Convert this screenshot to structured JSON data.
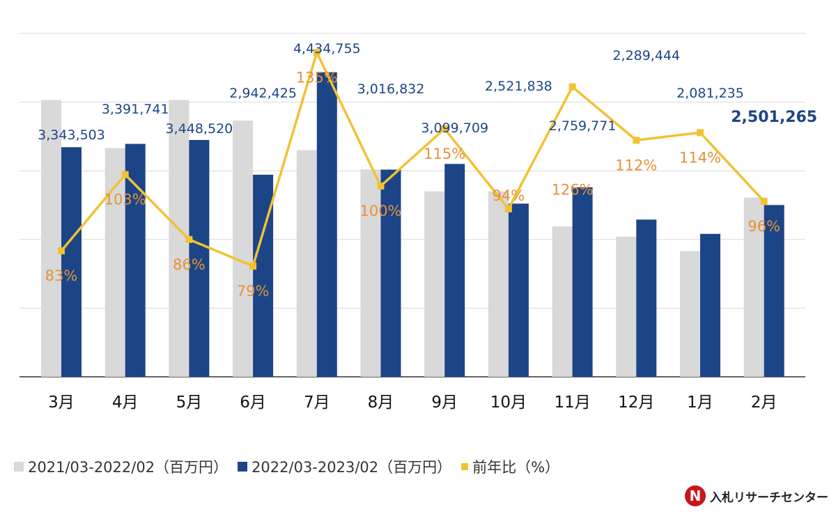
{
  "chart_data": {
    "type": "bar",
    "categories": [
      "3月",
      "4月",
      "5月",
      "6月",
      "7月",
      "8月",
      "9月",
      "10月",
      "11月",
      "12月",
      "1月",
      "2月"
    ],
    "series": [
      {
        "name": "2021/03-2022/02（百万円）",
        "color": "#d9d9d9",
        "values": [
          4030000,
          3330000,
          4030000,
          3730000,
          3300000,
          3020000,
          2700000,
          2700000,
          2190000,
          2040000,
          1830000,
          2610000
        ]
      },
      {
        "name": "2022/03-2023/02（百万円）",
        "color": "#1c4587",
        "values": [
          3343503,
          3391741,
          3448520,
          2942425,
          4434755,
          3016832,
          3099709,
          2521838,
          2759771,
          2289444,
          2081235,
          2501265
        ],
        "labels": [
          "3,343,503",
          "3,391,741",
          "3,448,520",
          "2,942,425",
          "4,434,755",
          "3,016,832",
          "3,099,709",
          "2,521,838",
          "2,759,771",
          "2,289,444",
          "2,081,235",
          "2,501,265"
        ]
      },
      {
        "name": "前年比（%）",
        "color": "#f1c232",
        "type": "line",
        "values": [
          83,
          103,
          86,
          79,
          135,
          100,
          115,
          94,
          126,
          112,
          114,
          96
        ],
        "labels": [
          "83%",
          "103%",
          "86%",
          "79%",
          "135%",
          "100%",
          "115%",
          "94%",
          "126%",
          "112%",
          "114%",
          "96%"
        ]
      }
    ],
    "ylim": [
      0,
      5000000
    ],
    "ratio_ylim": [
      50,
      140
    ],
    "grid": true,
    "legend": "bottom"
  },
  "colors": {
    "accent": "#1c4587",
    "prev_year": "#d9d9d9",
    "ratio_line": "#f1c232",
    "ratio_label": "#e69138"
  },
  "logo": {
    "mark": "N",
    "text": "入札リサーチセンター"
  }
}
